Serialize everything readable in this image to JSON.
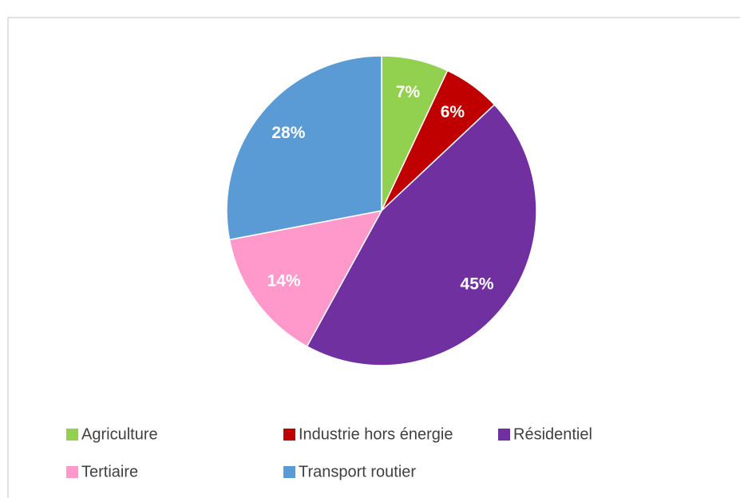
{
  "chart_data": {
    "type": "pie",
    "categories": [
      "Agriculture",
      "Industrie hors énergie",
      "Résidentiel",
      "Tertiaire",
      "Transport routier"
    ],
    "values": [
      7,
      6,
      45,
      14,
      28
    ],
    "value_labels": [
      "7%",
      "6%",
      "45%",
      "14%",
      "28%"
    ],
    "colors": [
      "#92d050",
      "#c00000",
      "#7030a0",
      "#ff99cc",
      "#5b9bd5"
    ]
  }
}
